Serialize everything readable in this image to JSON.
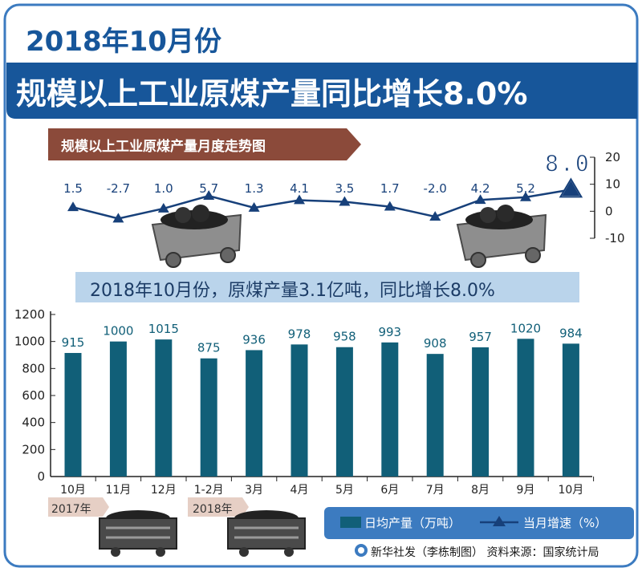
{
  "header": {
    "period": "2018年10月份",
    "headline": "规模以上工业原煤产量同比增长8.0%"
  },
  "subtitle": "规模以上工业原煤产量月度走势图",
  "highlight": "2018年10月份，原煤产量3.1亿吨，同比增长8.0%",
  "years": [
    "2017年",
    "2018年"
  ],
  "legend": {
    "bar": "日均产量（万吨）",
    "line": "当月增速（%）"
  },
  "footer": "新华社发（李栋制图）  资料来源：国家统计局",
  "colors": {
    "bar": "#115f78",
    "line": "#17407a",
    "title_band": "#17569a",
    "tab": "#8b4a3a",
    "frame": "#3c7bc0",
    "highlight_band": "#b6d2ea"
  },
  "chart_data": [
    {
      "type": "line",
      "x": [
        "10月",
        "11月",
        "12月",
        "1-2月",
        "3月",
        "4月",
        "5月",
        "6月",
        "7月",
        "8月",
        "9月",
        "10月"
      ],
      "values": [
        1.5,
        -2.7,
        1.0,
        5.7,
        1.3,
        4.1,
        3.5,
        1.7,
        -2.0,
        4.2,
        5.2,
        8.0
      ],
      "value_labels": [
        "1.5",
        "-2.7",
        "1.0",
        "5.7",
        "1.3",
        "4.1",
        "3.5",
        "1.7",
        "-2.0",
        "4.2",
        "5.2",
        "8.0"
      ],
      "yticks": [
        "20",
        "10",
        "0",
        "-10"
      ],
      "ylim": [
        -10,
        20
      ],
      "axis_side": "right"
    },
    {
      "type": "bar",
      "categories": [
        "10月",
        "11月",
        "12月",
        "1-2月",
        "3月",
        "4月",
        "5月",
        "6月",
        "7月",
        "8月",
        "9月",
        "10月"
      ],
      "values": [
        915,
        1000,
        1015,
        875,
        936,
        978,
        958,
        993,
        908,
        957,
        1020,
        984
      ],
      "yticks": [
        "0",
        "200",
        "400",
        "600",
        "800",
        "1000",
        "1200"
      ],
      "ylim": [
        0,
        1200
      ],
      "grid": false
    }
  ]
}
